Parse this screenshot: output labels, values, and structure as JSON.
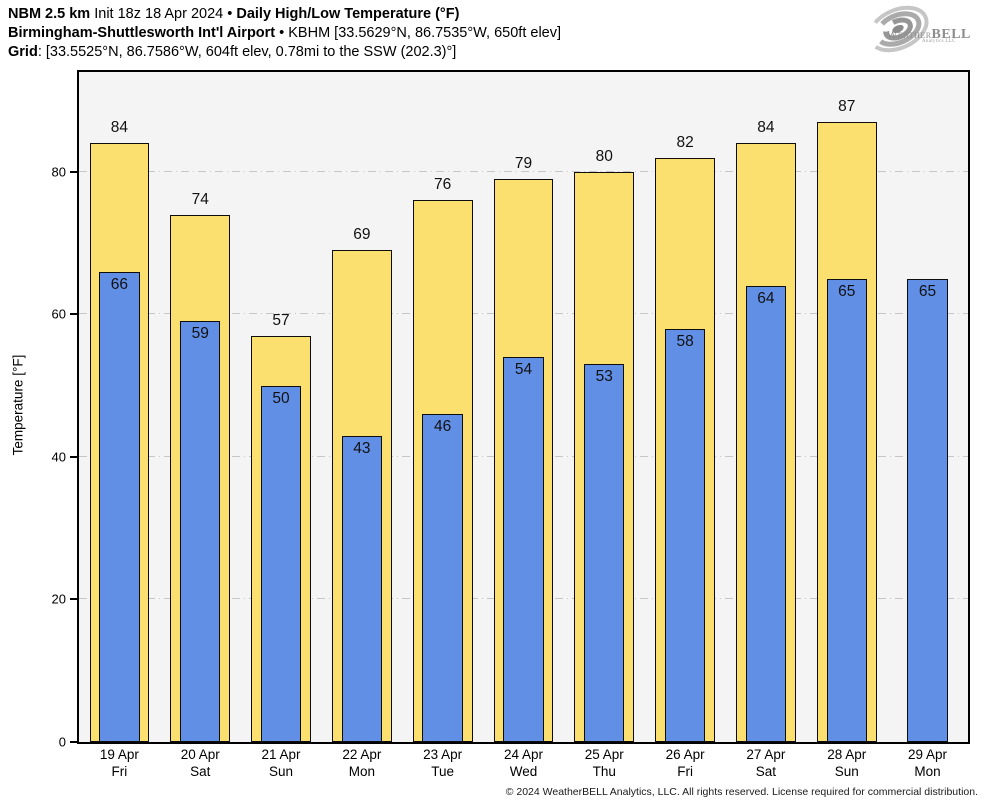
{
  "header": {
    "line1": {
      "bold1": "NBM 2.5 km",
      "regular1": " Init 18z 18 Apr 2024 • ",
      "bold2": "Daily High/Low Temperature (°F)"
    },
    "line2": {
      "bold1": "Birmingham-Shuttlesworth Int'l Airport",
      "regular1": " • KBHM [33.5629°N, 86.7535°W, 650ft elev]"
    },
    "line3": {
      "bold1": "Grid",
      "regular1": ": [33.5525°N, 86.7586°W, 604ft elev, 0.78mi to the SSW (202.3)°]"
    }
  },
  "logo": {
    "brand_smallcaps": "Weather",
    "brand_bold": "BELL",
    "subtext": "Analytics LLC"
  },
  "chart_data": {
    "type": "bar",
    "title": "Daily High/Low Temperature (°F)",
    "xlabel": "",
    "ylabel": "Temperature [°F]",
    "ylim": [
      0,
      94
    ],
    "yticks": [
      0,
      20,
      40,
      60,
      80
    ],
    "grid": "horizontal dash-dot lines at yticks, drawn behind bars",
    "legend_position": "none",
    "plot_background": "#f4f4f4",
    "categories": [
      {
        "date": "19 Apr",
        "day": "Fri"
      },
      {
        "date": "20 Apr",
        "day": "Sat"
      },
      {
        "date": "21 Apr",
        "day": "Sun"
      },
      {
        "date": "22 Apr",
        "day": "Mon"
      },
      {
        "date": "23 Apr",
        "day": "Tue"
      },
      {
        "date": "24 Apr",
        "day": "Wed"
      },
      {
        "date": "25 Apr",
        "day": "Thu"
      },
      {
        "date": "26 Apr",
        "day": "Fri"
      },
      {
        "date": "27 Apr",
        "day": "Sat"
      },
      {
        "date": "28 Apr",
        "day": "Sun"
      },
      {
        "date": "29 Apr",
        "day": "Mon"
      }
    ],
    "series": [
      {
        "name": "Daily High",
        "color": "#fbdf6f",
        "values": [
          84,
          74,
          57,
          69,
          76,
          79,
          80,
          82,
          84,
          87,
          null
        ]
      },
      {
        "name": "Daily Low",
        "color": "#618fe5",
        "values": [
          66,
          59,
          50,
          43,
          46,
          54,
          53,
          58,
          64,
          65,
          65
        ]
      }
    ]
  },
  "footer": {
    "copyright": "© 2024 WeatherBELL Analytics, LLC. All rights reserved. License required for commercial distribution."
  },
  "colors": {
    "high_bar": "#fbdf6f",
    "low_bar": "#618fe5",
    "bar_outline": "#0d0d0d",
    "plot_background": "#f4f4f4",
    "gridline": "#c7c7c7",
    "axis": "#000000",
    "logo_gray": "#8d8d8d"
  }
}
